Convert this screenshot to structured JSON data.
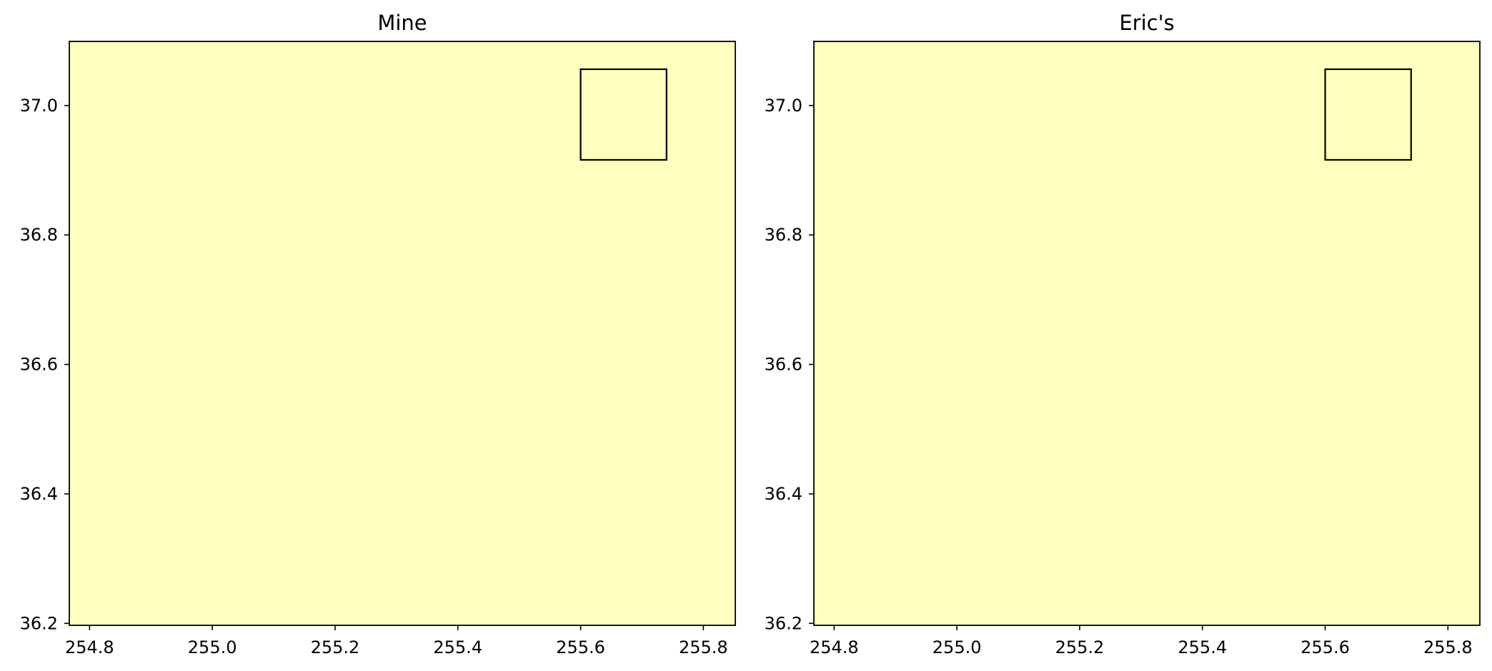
{
  "figure_background": "#ffffff",
  "chart_data": [
    {
      "type": "area",
      "title": "Mine",
      "xlabel": "",
      "ylabel": "",
      "xlim": [
        254.767,
        255.852
      ],
      "ylim": [
        36.197,
        37.099
      ],
      "x_ticks": [
        254.8,
        255.0,
        255.2,
        255.4,
        255.6,
        255.8
      ],
      "x_tick_labels": [
        "254.8",
        "255.0",
        "255.2",
        "255.4",
        "255.6",
        "255.8"
      ],
      "y_ticks": [
        36.2,
        36.4,
        36.6,
        36.8,
        37.0
      ],
      "y_tick_labels": [
        "36.2",
        "36.4",
        "36.6",
        "36.8",
        "37.0"
      ],
      "grid": false,
      "fill_color": "#ffffc0",
      "outlined_region": {
        "x": [
          255.6,
          255.74
        ],
        "y": [
          36.916,
          37.056
        ],
        "fill": "#ffffc0",
        "edge": "#000000"
      }
    },
    {
      "type": "area",
      "title": "Eric's",
      "xlabel": "",
      "ylabel": "",
      "xlim": [
        254.767,
        255.852
      ],
      "ylim": [
        36.197,
        37.099
      ],
      "x_ticks": [
        254.8,
        255.0,
        255.2,
        255.4,
        255.6,
        255.8
      ],
      "x_tick_labels": [
        "254.8",
        "255.0",
        "255.2",
        "255.4",
        "255.6",
        "255.8"
      ],
      "y_ticks": [
        36.2,
        36.4,
        36.6,
        36.8,
        37.0
      ],
      "y_tick_labels": [
        "36.2",
        "36.4",
        "36.6",
        "36.8",
        "37.0"
      ],
      "grid": false,
      "fill_color": "#ffffc0",
      "outlined_region": {
        "x": [
          255.6,
          255.74
        ],
        "y": [
          36.916,
          37.056
        ],
        "fill": "#ffffc0",
        "edge": "#000000"
      }
    }
  ]
}
